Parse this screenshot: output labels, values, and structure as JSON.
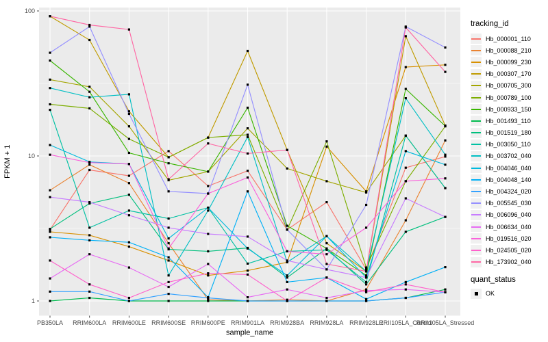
{
  "chart_data": {
    "type": "line",
    "title": "",
    "xlabel": "sample_name",
    "ylabel": "FPKM + 1",
    "y_scale": "log10",
    "y_ticks": [
      1,
      10,
      100
    ],
    "y_tick_labels": [
      "1",
      "10",
      "100"
    ],
    "y_minor_ticks": [
      3.162,
      31.623
    ],
    "ylim": [
      0.95,
      110
    ],
    "grid": true,
    "legend_position": "right",
    "panel_bg": "#EBEBEB",
    "grid_color": "#FFFFFF",
    "axis_text_color": "#4D4D4D",
    "marker": {
      "shape": "filled-square",
      "color": "#000000",
      "size": 3.2
    },
    "categories": [
      "PB350LA",
      "RRIM600LA",
      "RRIM600LE",
      "RRIM600SE",
      "RRIM600PE",
      "RRIM901LA",
      "RRIM928BA",
      "RRIM928LA",
      "RRIM928LE",
      "RRII105LA_Control",
      "RRII105LA_Stressed"
    ],
    "legend_title": "tracking_id",
    "series": [
      {
        "id": "Hb_000001_110",
        "color": "#F8766D",
        "values": [
          3.1,
          8.0,
          7.3,
          10.8,
          6.2,
          7.9,
          3.1,
          4.8,
          1.65,
          8.3,
          9.9
        ]
      },
      {
        "id": "Hb_000088_210",
        "color": "#EA8331",
        "values": [
          5.8,
          8.7,
          6.5,
          2.5,
          1.02,
          1.0,
          1.02,
          1.0,
          1.2,
          3.6,
          12.8
        ]
      },
      {
        "id": "Hb_000099_230",
        "color": "#D89000",
        "values": [
          3.0,
          2.84,
          2.37,
          1.9,
          1.5,
          1.62,
          1.85,
          11.6,
          5.7,
          41.0,
          42.5
        ]
      },
      {
        "id": "Hb_000307_170",
        "color": "#C09B00",
        "values": [
          92.0,
          63.0,
          20.3,
          9.8,
          13.4,
          53.0,
          11.0,
          2.5,
          1.6,
          67.0,
          16.2
        ]
      },
      {
        "id": "Hb_000705_300",
        "color": "#A3A500",
        "values": [
          33.6,
          30.0,
          16.0,
          6.8,
          7.8,
          15.5,
          8.2,
          6.7,
          5.6,
          13.8,
          6.0
        ]
      },
      {
        "id": "Hb_000789_100",
        "color": "#7CAE00",
        "values": [
          22.7,
          21.3,
          13.1,
          9.8,
          13.4,
          14.0,
          3.1,
          12.6,
          1.7,
          6.7,
          16.0
        ]
      },
      {
        "id": "Hb_000933_150",
        "color": "#39B600",
        "values": [
          45.5,
          27.7,
          10.5,
          8.9,
          7.8,
          21.5,
          3.3,
          2.3,
          1.5,
          29.0,
          16.1
        ]
      },
      {
        "id": "Hb_001493_110",
        "color": "#00BB4E",
        "values": [
          1.0,
          1.05,
          1.0,
          1.0,
          1.0,
          1.0,
          1.0,
          1.0,
          1.0,
          1.05,
          1.2
        ]
      },
      {
        "id": "Hb_001519_180",
        "color": "#00BF7D",
        "values": [
          3.14,
          4.7,
          5.4,
          2.27,
          2.2,
          2.32,
          1.45,
          2.3,
          1.3,
          3.0,
          3.8
        ]
      },
      {
        "id": "Hb_003050_110",
        "color": "#00C1A3",
        "values": [
          20.8,
          3.2,
          4.2,
          3.7,
          4.4,
          1.81,
          2.2,
          2.25,
          1.35,
          13.8,
          6.0
        ]
      },
      {
        "id": "Hb_003702_040",
        "color": "#00BFC4",
        "values": [
          29.4,
          25.4,
          26.6,
          1.5,
          4.2,
          13.5,
          1.85,
          2.8,
          1.6,
          25.0,
          10.2
        ]
      },
      {
        "id": "Hb_004046_040",
        "color": "#00BADE",
        "values": [
          11.9,
          9.1,
          8.8,
          2.7,
          4.4,
          2.3,
          1.5,
          2.8,
          1.45,
          10.8,
          8.7
        ]
      },
      {
        "id": "Hb_004048_140",
        "color": "#00B0F6",
        "values": [
          2.75,
          2.62,
          2.54,
          2.0,
          1.06,
          5.7,
          1.35,
          1.45,
          1.03,
          1.35,
          1.71
        ]
      },
      {
        "id": "Hb_004324_020",
        "color": "#35A2FF",
        "values": [
          1.16,
          1.16,
          1.0,
          1.12,
          1.05,
          1.0,
          1.0,
          1.0,
          1.0,
          1.05,
          1.15
        ]
      },
      {
        "id": "Hb_005545_030",
        "color": "#9590FF",
        "values": [
          51.5,
          78.0,
          19.5,
          5.7,
          5.5,
          31.0,
          3.1,
          1.65,
          4.6,
          78.0,
          56.0
        ]
      },
      {
        "id": "Hb_006096_040",
        "color": "#C77CFF",
        "values": [
          5.2,
          4.8,
          3.9,
          3.2,
          2.9,
          2.78,
          1.9,
          1.65,
          1.45,
          5.1,
          3.8
        ]
      },
      {
        "id": "Hb_006634_040",
        "color": "#E76BF3",
        "values": [
          1.43,
          2.1,
          1.7,
          1.25,
          1.8,
          1.06,
          1.2,
          1.05,
          1.18,
          1.2,
          1.15
        ]
      },
      {
        "id": "Hb_019516_020",
        "color": "#FA62DB",
        "values": [
          10.2,
          9.0,
          8.8,
          2.3,
          5.5,
          7.1,
          2.2,
          2.1,
          3.2,
          6.7,
          7.0
        ]
      },
      {
        "id": "Hb_024505_020",
        "color": "#FF61CC",
        "values": [
          1.9,
          1.3,
          1.05,
          1.35,
          1.55,
          1.52,
          1.0,
          1.45,
          1.15,
          1.3,
          1.15
        ]
      },
      {
        "id": "Hb_173902_040",
        "color": "#FF67A4",
        "values": [
          92.0,
          80.0,
          74.5,
          6.9,
          12.2,
          10.4,
          11.0,
          1.8,
          1.6,
          77.0,
          38.0
        ]
      }
    ],
    "quant_legend": {
      "title": "quant_status",
      "items": [
        {
          "label": "OK",
          "marker": "filled-square",
          "color": "#000000"
        }
      ]
    }
  }
}
